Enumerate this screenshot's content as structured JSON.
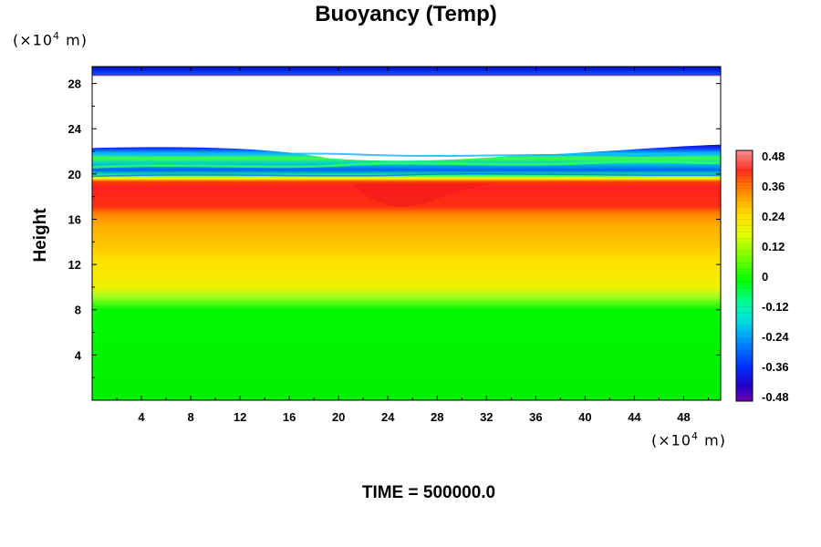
{
  "title": "Buoyancy (Temp)",
  "y_unit": {
    "prefix": "(×10",
    "exp": "4",
    "suffix": " m)"
  },
  "x_unit": {
    "prefix": "(×10",
    "exp": "4",
    "suffix": " m)"
  },
  "footer": "TIME = 500000.0",
  "chart_data": {
    "type": "heatmap",
    "title": "Buoyancy (Temp)",
    "ylabel": "Height",
    "xlabel": "",
    "xlim": [
      0,
      51
    ],
    "ylim": [
      0,
      29.5
    ],
    "x_ticks": [
      4,
      8,
      12,
      16,
      20,
      24,
      28,
      32,
      36,
      40,
      44,
      48
    ],
    "y_ticks": [
      4,
      8,
      12,
      16,
      20,
      24,
      28
    ],
    "colorbar": {
      "ticks": [
        "0.48",
        "0.36",
        "0.24",
        "0.12",
        "0",
        "-0.12",
        "-0.24",
        "-0.36",
        "-0.48"
      ],
      "min": -0.48,
      "max": 0.48,
      "colors": [
        "#7a00c8",
        "#2000d0",
        "#0040ff",
        "#0090ff",
        "#00e0e0",
        "#00ff90",
        "#00ff00",
        "#80ff00",
        "#e0ff00",
        "#ffe000",
        "#ffb000",
        "#ff7000",
        "#ff3000",
        "#f06060",
        "#f89090"
      ]
    },
    "layers": [
      {
        "y_from": 0,
        "y_to": 8.5,
        "value": 0.0
      },
      {
        "y_from": 8.5,
        "y_to": 9.8,
        "value": 0.08
      },
      {
        "y_from": 9.8,
        "y_to": 12.5,
        "value": 0.16
      },
      {
        "y_from": 12.5,
        "y_to": 16.5,
        "value": 0.22
      },
      {
        "y_from": 16.5,
        "y_to": 19.3,
        "value": 0.36
      },
      {
        "y_from": 19.3,
        "y_to": 22.5,
        "value": -0.2
      },
      {
        "y_from": 22.5,
        "y_to": 28.6,
        "value": null
      },
      {
        "y_from": 28.6,
        "y_to": 29.5,
        "value": -0.4
      }
    ]
  }
}
